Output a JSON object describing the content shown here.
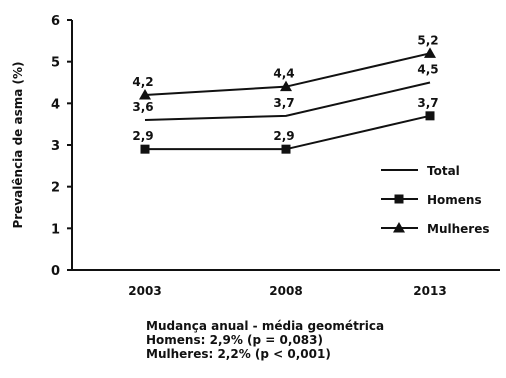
{
  "chart_data": {
    "type": "line",
    "ylabel": "Prevalência de asma (%)",
    "xlabel": "",
    "categories": [
      "2003",
      "2008",
      "2013"
    ],
    "ylim": [
      0,
      6
    ],
    "yticks": [
      0,
      1,
      2,
      3,
      4,
      5,
      6
    ],
    "grid": false,
    "legend_position": "right",
    "series": [
      {
        "name": "Total",
        "marker": "none",
        "values": [
          3.6,
          3.7,
          4.5
        ],
        "labels": [
          "3,6",
          "3,7",
          "4,5"
        ]
      },
      {
        "name": "Homens",
        "marker": "square",
        "values": [
          2.9,
          2.9,
          3.7
        ],
        "labels": [
          "2,9",
          "2,9",
          "3,7"
        ]
      },
      {
        "name": "Mulheres",
        "marker": "triangle",
        "values": [
          4.2,
          4.4,
          5.2
        ],
        "labels": [
          "4,2",
          "4,4",
          "5,2"
        ]
      }
    ],
    "notes": [
      "Mudança anual - média geométrica",
      "Homens: 2,9% (p = 0,083)",
      "Mulheres: 2,2% (p < 0,001)"
    ]
  }
}
